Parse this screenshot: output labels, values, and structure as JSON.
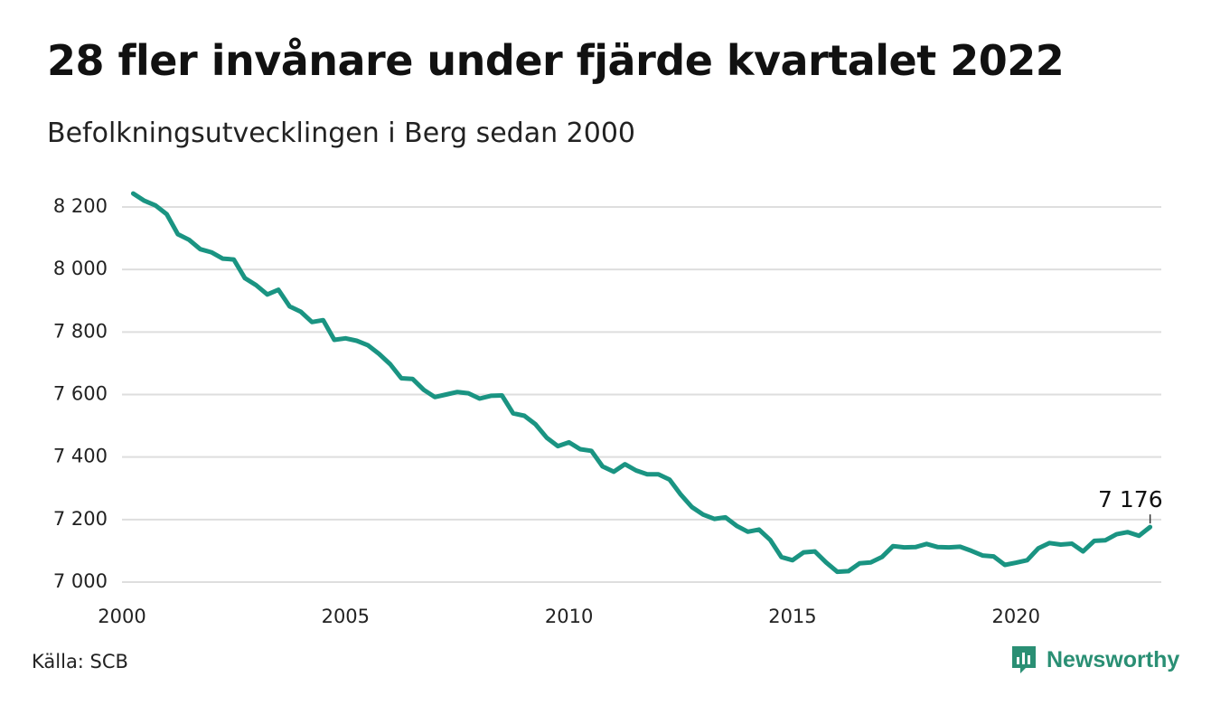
{
  "title": "28 fler invånare under fjärde kvartalet 2022",
  "subtitle": "Befolkningsutvecklingen i Berg sedan 2000",
  "source": "Källa: SCB",
  "brand": "Newsworthy",
  "colors": {
    "line": "#1a9482",
    "grid": "#dedede",
    "brand": "#2a8f74"
  },
  "chart_data": {
    "type": "line",
    "x_ticks": [
      2000,
      2005,
      2010,
      2015,
      2020
    ],
    "x_tick_labels": [
      "2000",
      "2005",
      "2010",
      "2015",
      "2020"
    ],
    "y_ticks": [
      7000,
      7200,
      7400,
      7600,
      7800,
      8000,
      8200
    ],
    "y_tick_labels": [
      "7 000",
      "7 200",
      "7 400",
      "7 600",
      "7 800",
      "8 000",
      "8 200"
    ],
    "xlim": [
      2000.0,
      2023.25
    ],
    "ylim": [
      6990,
      8250
    ],
    "grid": true,
    "last_value_label": "7 176",
    "x": [
      2000.25,
      2000.5,
      2000.75,
      2001.0,
      2001.25,
      2001.5,
      2001.75,
      2002.0,
      2002.25,
      2002.5,
      2002.75,
      2003.0,
      2003.25,
      2003.5,
      2003.75,
      2004.0,
      2004.25,
      2004.5,
      2004.75,
      2005.0,
      2005.25,
      2005.5,
      2005.75,
      2006.0,
      2006.25,
      2006.5,
      2006.75,
      2007.0,
      2007.25,
      2007.5,
      2007.75,
      2008.0,
      2008.25,
      2008.5,
      2008.75,
      2009.0,
      2009.25,
      2009.5,
      2009.75,
      2010.0,
      2010.25,
      2010.5,
      2010.75,
      2011.0,
      2011.25,
      2011.5,
      2011.75,
      2012.0,
      2012.25,
      2012.5,
      2012.75,
      2013.0,
      2013.25,
      2013.5,
      2013.75,
      2014.0,
      2014.25,
      2014.5,
      2014.75,
      2015.0,
      2015.25,
      2015.5,
      2015.75,
      2016.0,
      2016.25,
      2016.5,
      2016.75,
      2017.0,
      2017.25,
      2017.5,
      2017.75,
      2018.0,
      2018.25,
      2018.5,
      2018.75,
      2019.0,
      2019.25,
      2019.5,
      2019.75,
      2020.0,
      2020.25,
      2020.5,
      2020.75,
      2021.0,
      2021.25,
      2021.5,
      2021.75,
      2022.0,
      2022.25,
      2022.5,
      2022.75,
      2023.0
    ],
    "y": [
      8243,
      8220,
      8205,
      8177,
      8113,
      8095,
      8065,
      8055,
      8035,
      8032,
      7972,
      7950,
      7920,
      7935,
      7882,
      7865,
      7832,
      7838,
      7775,
      7780,
      7772,
      7758,
      7730,
      7697,
      7652,
      7650,
      7615,
      7592,
      7600,
      7608,
      7604,
      7587,
      7596,
      7597,
      7540,
      7532,
      7505,
      7462,
      7435,
      7447,
      7425,
      7420,
      7370,
      7353,
      7377,
      7357,
      7345,
      7345,
      7328,
      7280,
      7240,
      7216,
      7202,
      7207,
      7180,
      7161,
      7168,
      7135,
      7080,
      7070,
      7095,
      7098,
      7063,
      7033,
      7035,
      7060,
      7063,
      7080,
      7115,
      7111,
      7112,
      7122,
      7112,
      7111,
      7113,
      7100,
      7085,
      7082,
      7055,
      7062,
      7070,
      7108,
      7125,
      7120,
      7123,
      7098,
      7132,
      7134,
      7153,
      7160,
      7148,
      7176
    ]
  }
}
